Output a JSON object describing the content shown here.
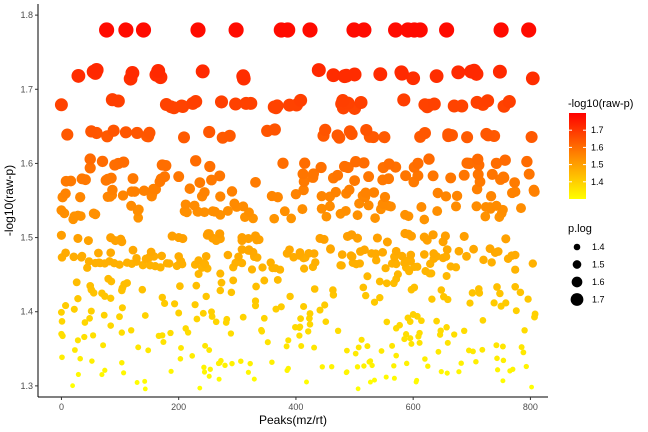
{
  "chart_data": {
    "type": "scatter",
    "xlabel": "Peaks(mz/rt)",
    "ylabel": "-log10(raw-p)",
    "xlim": [
      -40,
      830
    ],
    "ylim": [
      1.285,
      1.815
    ],
    "x_ticks": [
      0,
      200,
      400,
      600,
      800
    ],
    "y_ticks": [
      1.3,
      1.4,
      1.5,
      1.6,
      1.7,
      1.8
    ],
    "grid": false,
    "legend_placement": "right",
    "color_scale": {
      "title": "-log10(raw-p)",
      "low_color": "#FFFF00",
      "high_color": "#FF0000",
      "domain": [
        1.3,
        1.8
      ],
      "ticks": [
        1.4,
        1.5,
        1.6,
        1.7
      ]
    },
    "size_scale": {
      "title": "p.log",
      "domain": [
        1.3,
        1.8
      ],
      "ticks": [
        1.4,
        1.5,
        1.6,
        1.7
      ]
    },
    "top_row_x": [
      77,
      110,
      140,
      233,
      298,
      375,
      386,
      424,
      499,
      516,
      570,
      591,
      602,
      612,
      657,
      750,
      797
    ],
    "points_note": "dense cloud of peaks with -log10(raw-p) between 1.3 and 1.72, x between 0 and 810",
    "seed": 7
  }
}
